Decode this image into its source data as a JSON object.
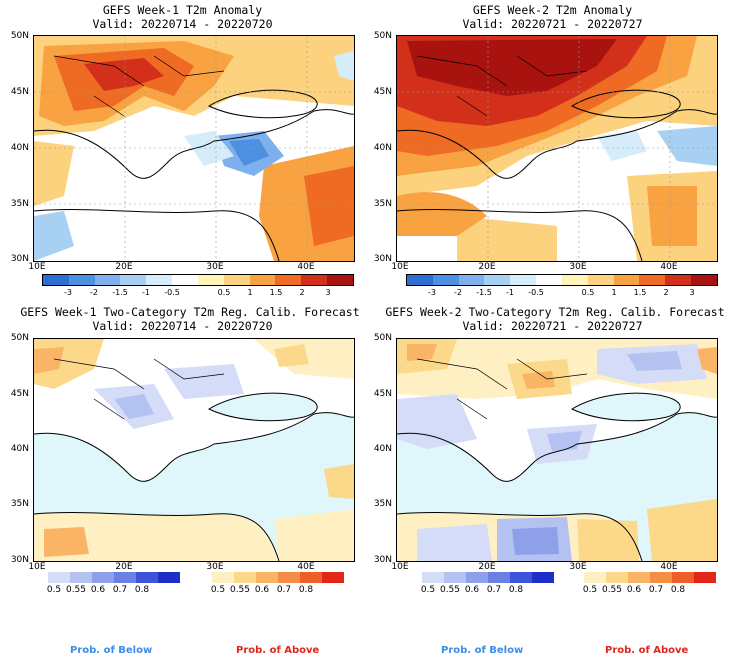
{
  "colors": {
    "sea": "#dff6fb",
    "anom": [
      "#2d6fd1",
      "#4d8fe0",
      "#7db0ec",
      "#a8d0f3",
      "#d5ecfa",
      "#ffffff",
      "#fff3b8",
      "#fcd27f",
      "#f8a242",
      "#ef6a22",
      "#d2301b",
      "#a8130f"
    ],
    "prob_below": [
      "#d4dcf7",
      "#b3c2f1",
      "#8fa0ea",
      "#6b7fe4",
      "#3d54da",
      "#1e2fc9"
    ],
    "prob_above": [
      "#fff0c4",
      "#fcd98a",
      "#f9b565",
      "#f58e45",
      "#ef5d2a",
      "#e02718"
    ],
    "below_text": "#3b8ee6",
    "above_text": "#e0261d"
  },
  "panels": [
    {
      "id": "w1-anom",
      "title1": "GEFS Week-1 T2m Anomaly",
      "title2": "Valid: 20220714 - 20220720"
    },
    {
      "id": "w2-anom",
      "title1": "GEFS Week-2 T2m Anomaly",
      "title2": "Valid: 20220721 - 20220727"
    },
    {
      "id": "w1-prob",
      "title1": "GEFS Week-1 Two-Category T2m Reg. Calib. Forecast",
      "title2": "Valid: 20220714 - 20220720"
    },
    {
      "id": "w2-prob",
      "title1": "GEFS Week-2 Two-Category T2m Reg. Calib. Forecast",
      "title2": "Valid: 20220721 - 20220727"
    }
  ],
  "lat_labels": [
    "50N",
    "45N",
    "40N",
    "35N",
    "30N"
  ],
  "lon_labels": [
    "10E",
    "20E",
    "30E",
    "40E"
  ],
  "anom_ticks": [
    "-3",
    "-2",
    "-1.5",
    "-1",
    "-0.5",
    "0.5",
    "1",
    "1.5",
    "2",
    "3"
  ],
  "prob_ticks": [
    "0.5",
    "0.55",
    "0.6",
    "0.7",
    "0.8"
  ],
  "footer": {
    "below": "Prob. of Below",
    "above": "Prob. of Above"
  }
}
